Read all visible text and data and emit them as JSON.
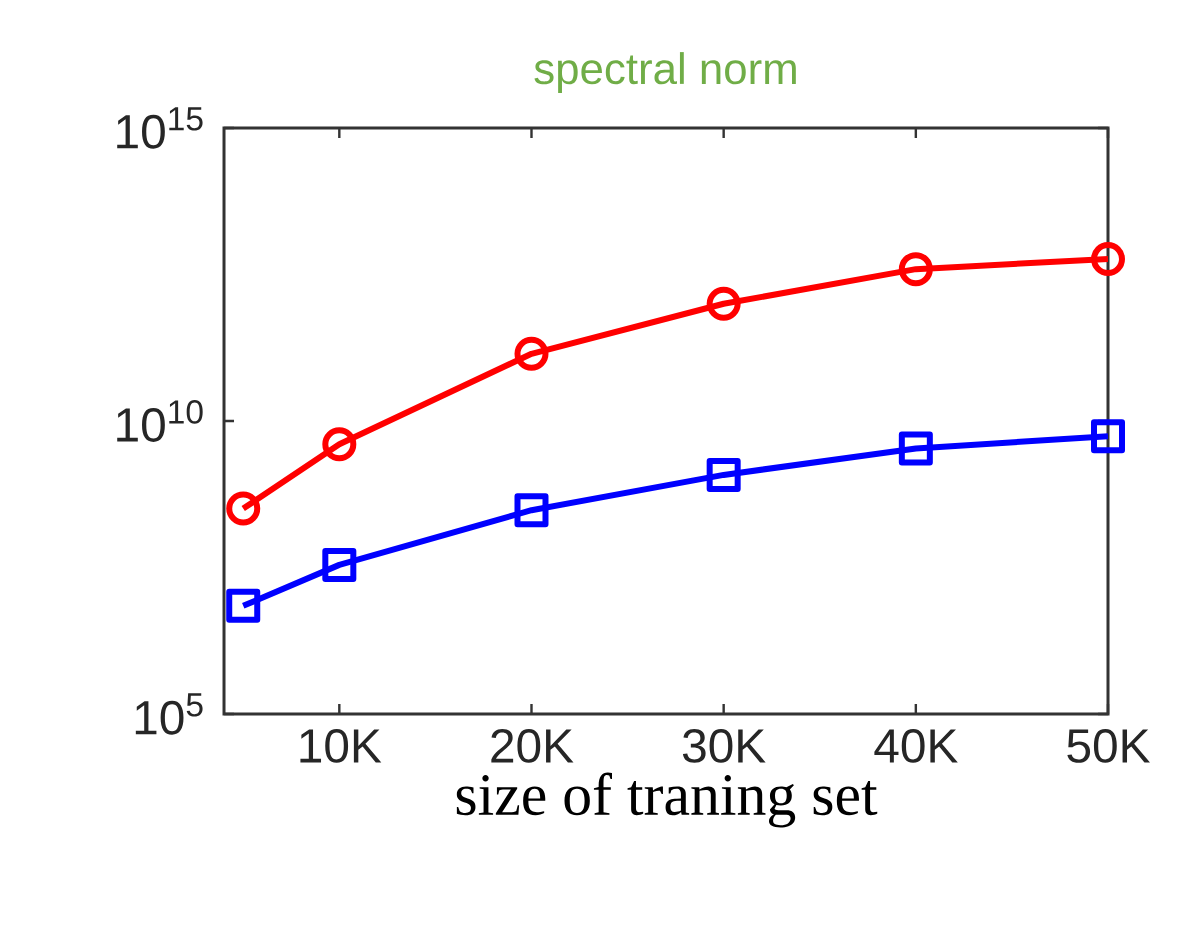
{
  "chart_data": {
    "type": "line",
    "title": "spectral norm",
    "xlabel": "size of traning set",
    "log": "y",
    "x": [
      5000,
      10000,
      20000,
      30000,
      40000,
      50000
    ],
    "xlim": [
      4000,
      50000
    ],
    "xticks": [
      {
        "value": 10000,
        "label": "10K"
      },
      {
        "value": 20000,
        "label": "20K"
      },
      {
        "value": 30000,
        "label": "30K"
      },
      {
        "value": 40000,
        "label": "40K"
      },
      {
        "value": 50000,
        "label": "50K"
      }
    ],
    "ylim": [
      100000,
      1000000000000000
    ],
    "yticks": [
      {
        "value": 100000,
        "label": "10$^{5}$"
      },
      {
        "value": 10000000000,
        "label": "10$^{10}$"
      },
      {
        "value": 1000000000000000,
        "label": "10$^{15}$"
      }
    ],
    "line_style": "solid",
    "series": [
      {
        "color": "#ff0000",
        "marker": "circle",
        "values": [
          320000000,
          4000000000,
          140000000000,
          1000000000000,
          3900000000000,
          5800000000000
        ]
      },
      {
        "color": "#0000ff",
        "marker": "square",
        "values": [
          7000000,
          35000000,
          300000000,
          1200000000,
          3400000000,
          5500000000
        ]
      }
    ]
  }
}
